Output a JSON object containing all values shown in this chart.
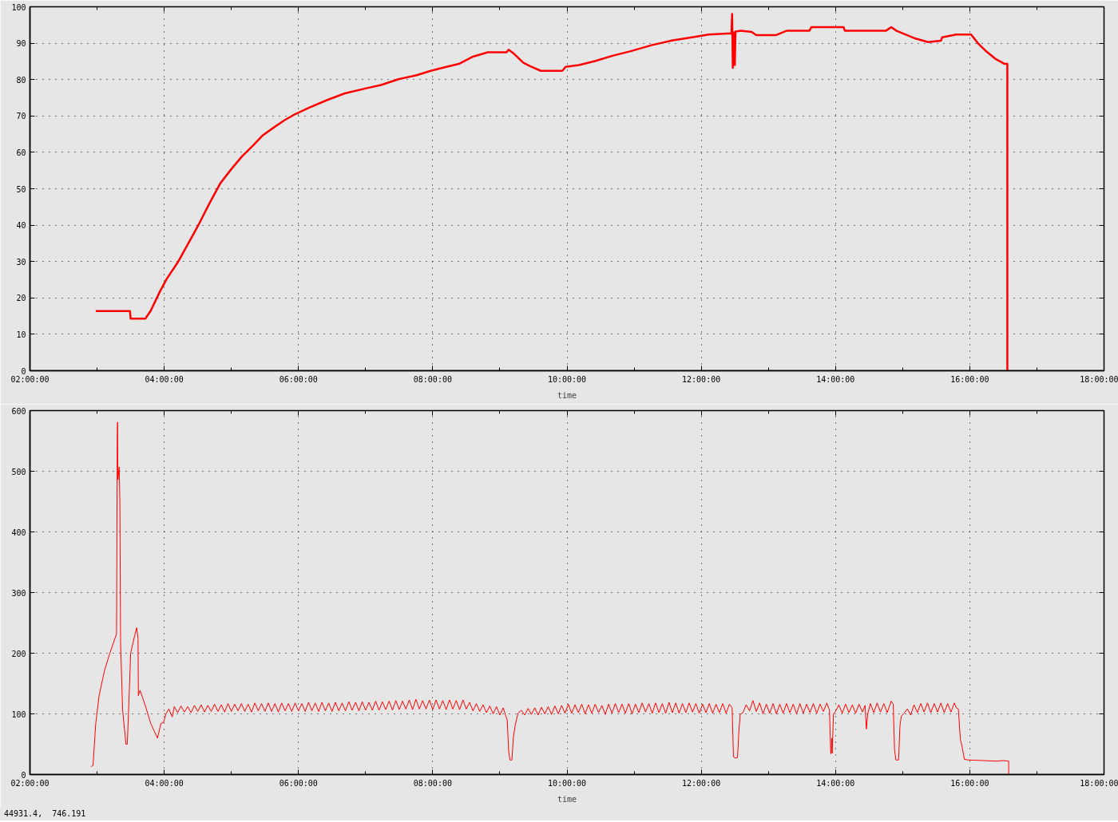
{
  "chart_data": [
    {
      "type": "line",
      "xlabel": "time",
      "xlim": [
        2,
        18
      ],
      "xticks": [
        {
          "value": 2,
          "label": "02:00:00"
        },
        {
          "value": 3,
          "label": null
        },
        {
          "value": 4,
          "label": "04:00:00"
        },
        {
          "value": 5,
          "label": null
        },
        {
          "value": 6,
          "label": "06:00:00"
        },
        {
          "value": 7,
          "label": null
        },
        {
          "value": 8,
          "label": "08:00:00"
        },
        {
          "value": 9,
          "label": null
        },
        {
          "value": 10,
          "label": "10:00:00"
        },
        {
          "value": 11,
          "label": null
        },
        {
          "value": 12,
          "label": "12:00:00"
        },
        {
          "value": 13,
          "label": null
        },
        {
          "value": 14,
          "label": "14:00:00"
        },
        {
          "value": 15,
          "label": null
        },
        {
          "value": 16,
          "label": "16:00:00"
        },
        {
          "value": 17,
          "label": null
        },
        {
          "value": 18,
          "label": "18:00:00"
        }
      ],
      "ylim": [
        0,
        100
      ],
      "yticks": [
        0,
        10,
        20,
        30,
        40,
        50,
        60,
        70,
        80,
        90,
        100
      ],
      "grid": true,
      "x": [
        2.98,
        3.49,
        3.5,
        3.72,
        3.8,
        3.94,
        4.04,
        4.2,
        4.36,
        4.52,
        4.68,
        4.84,
        5.0,
        5.16,
        5.32,
        5.47,
        5.63,
        5.79,
        5.95,
        6.16,
        6.43,
        6.69,
        7.01,
        7.23,
        7.49,
        7.76,
        7.97,
        8.18,
        8.39,
        8.6,
        8.82,
        9.1,
        9.13,
        9.21,
        9.35,
        9.45,
        9.61,
        9.93,
        9.98,
        10.18,
        10.42,
        10.69,
        10.95,
        11.27,
        11.58,
        11.9,
        12.11,
        12.45,
        12.46,
        12.47,
        12.48,
        12.5,
        12.51,
        12.59,
        12.75,
        12.82,
        13.11,
        13.27,
        13.61,
        13.64,
        14.12,
        14.14,
        14.75,
        14.83,
        14.91,
        15.04,
        15.17,
        15.38,
        15.57,
        15.59,
        15.8,
        16.02,
        16.12,
        16.23,
        16.39,
        16.52,
        16.56,
        16.56
      ],
      "series": [
        {
          "color": "#ff0000",
          "values": [
            16.4,
            16.4,
            14.3,
            14.3,
            16.5,
            21.9,
            25.3,
            29.7,
            35.0,
            40.4,
            46.2,
            51.6,
            55.4,
            58.9,
            61.8,
            64.7,
            66.8,
            68.8,
            70.5,
            72.3,
            74.4,
            76.2,
            77.6,
            78.5,
            80.1,
            81.2,
            82.4,
            83.4,
            84.3,
            86.3,
            87.5,
            87.5,
            88.2,
            87.1,
            84.6,
            83.7,
            82.4,
            82.4,
            83.5,
            84.0,
            85.1,
            86.6,
            87.8,
            89.5,
            90.8,
            91.7,
            92.4,
            92.7,
            98.0,
            83.2,
            93.0,
            84.0,
            93.2,
            93.4,
            93.1,
            92.2,
            92.2,
            93.4,
            93.4,
            94.4,
            94.4,
            93.4,
            93.4,
            94.4,
            93.4,
            92.4,
            91.4,
            90.3,
            90.7,
            91.6,
            92.4,
            92.4,
            90.0,
            88.0,
            85.6,
            84.3,
            84.3,
            0
          ]
        }
      ]
    },
    {
      "type": "line",
      "xlabel": "time",
      "xlim": [
        2,
        18
      ],
      "xticks": [
        {
          "value": 2,
          "label": "02:00:00"
        },
        {
          "value": 3,
          "label": null
        },
        {
          "value": 4,
          "label": "04:00:00"
        },
        {
          "value": 5,
          "label": null
        },
        {
          "value": 6,
          "label": "06:00:00"
        },
        {
          "value": 7,
          "label": null
        },
        {
          "value": 8,
          "label": "08:00:00"
        },
        {
          "value": 9,
          "label": null
        },
        {
          "value": 10,
          "label": "10:00:00"
        },
        {
          "value": 11,
          "label": null
        },
        {
          "value": 12,
          "label": "12:00:00"
        },
        {
          "value": 13,
          "label": null
        },
        {
          "value": 14,
          "label": "14:00:00"
        },
        {
          "value": 15,
          "label": null
        },
        {
          "value": 16,
          "label": "16:00:00"
        },
        {
          "value": 17,
          "label": null
        },
        {
          "value": 18,
          "label": "18:00:00"
        }
      ],
      "ylim": [
        0,
        600
      ],
      "yticks": [
        0,
        100,
        200,
        300,
        400,
        500,
        600
      ],
      "grid": true,
      "annotations": [
        "44931.4,  746.191"
      ],
      "x": [
        2.91,
        2.94,
        2.98,
        3.03,
        3.11,
        3.19,
        3.29,
        3.3,
        3.305,
        3.31,
        3.33,
        3.34,
        3.35,
        3.38,
        3.43,
        3.45,
        3.47,
        3.5,
        3.56,
        3.59,
        3.61,
        3.615,
        3.64,
        3.72,
        3.8,
        3.9,
        3.95,
        3.99,
        4.03,
        4.07,
        4.12,
        4.15,
        4.2,
        4.25,
        4.3,
        4.35,
        4.4,
        4.45,
        4.5,
        4.55,
        4.6,
        4.65,
        4.7,
        4.75,
        4.8,
        4.85,
        4.9,
        4.95,
        5.0,
        5.05,
        5.1,
        5.15,
        5.2,
        5.25,
        5.3,
        5.35,
        5.4,
        5.45,
        5.5,
        5.55,
        5.6,
        5.65,
        5.7,
        5.75,
        5.8,
        5.85,
        5.9,
        5.95,
        6.0,
        6.05,
        6.1,
        6.15,
        6.2,
        6.25,
        6.3,
        6.35,
        6.4,
        6.45,
        6.5,
        6.55,
        6.6,
        6.65,
        6.7,
        6.75,
        6.8,
        6.85,
        6.9,
        6.95,
        7.0,
        7.05,
        7.1,
        7.15,
        7.2,
        7.25,
        7.3,
        7.35,
        7.4,
        7.45,
        7.5,
        7.55,
        7.6,
        7.65,
        7.7,
        7.75,
        7.8,
        7.85,
        7.9,
        7.95,
        8.0,
        8.05,
        8.1,
        8.15,
        8.2,
        8.25,
        8.3,
        8.35,
        8.4,
        8.45,
        8.5,
        8.55,
        8.6,
        8.65,
        8.7,
        8.75,
        8.8,
        8.85,
        8.9,
        8.95,
        9.0,
        9.05,
        9.09,
        9.11,
        9.13,
        9.15,
        9.18,
        9.2,
        9.23,
        9.27,
        9.32,
        9.37,
        9.42,
        9.47,
        9.52,
        9.57,
        9.62,
        9.67,
        9.72,
        9.77,
        9.82,
        9.87,
        9.92,
        9.97,
        10.02,
        10.07,
        10.12,
        10.17,
        10.22,
        10.27,
        10.32,
        10.37,
        10.42,
        10.47,
        10.52,
        10.57,
        10.62,
        10.67,
        10.72,
        10.77,
        10.82,
        10.87,
        10.92,
        10.97,
        11.02,
        11.07,
        11.12,
        11.17,
        11.22,
        11.27,
        11.32,
        11.37,
        11.42,
        11.47,
        11.52,
        11.57,
        11.62,
        11.67,
        11.72,
        11.77,
        11.82,
        11.87,
        11.92,
        11.97,
        12.02,
        12.07,
        12.12,
        12.17,
        12.22,
        12.27,
        12.32,
        12.37,
        12.42,
        12.46,
        12.48,
        12.51,
        12.54,
        12.56,
        12.58,
        12.62,
        12.67,
        12.72,
        12.77,
        12.82,
        12.87,
        12.92,
        12.97,
        13.02,
        13.07,
        13.12,
        13.17,
        13.22,
        13.27,
        13.32,
        13.37,
        13.42,
        13.47,
        13.52,
        13.57,
        13.62,
        13.67,
        13.72,
        13.77,
        13.82,
        13.87,
        13.91,
        13.93,
        13.945,
        13.95,
        13.97,
        14.0,
        14.05,
        14.1,
        14.15,
        14.2,
        14.25,
        14.3,
        14.35,
        14.4,
        14.44,
        14.46,
        14.48,
        14.52,
        14.57,
        14.62,
        14.67,
        14.72,
        14.77,
        14.83,
        14.86,
        14.88,
        14.9,
        14.94,
        14.96,
        14.98,
        15.02,
        15.07,
        15.12,
        15.17,
        15.22,
        15.27,
        15.32,
        15.37,
        15.42,
        15.47,
        15.52,
        15.57,
        15.62,
        15.67,
        15.72,
        15.77,
        15.8,
        15.83,
        15.86,
        15.88,
        15.92,
        15.98,
        16.2,
        16.4,
        16.5,
        16.58,
        16.58
      ],
      "series": [
        {
          "color": "#ff0000",
          "values": [
            13,
            15,
            84,
            130,
            171,
            200,
            232,
            550,
            581,
            486,
            507,
            445,
            218,
            107,
            50,
            50,
            107,
            200,
            229,
            242,
            224,
            130,
            139,
            113,
            84,
            60,
            84,
            86,
            101,
            108,
            95,
            112,
            102,
            113,
            103,
            112,
            102,
            114,
            104,
            115,
            103,
            114,
            104,
            116,
            104,
            115,
            103,
            117,
            104,
            116,
            105,
            117,
            104,
            116,
            103,
            118,
            105,
            117,
            104,
            118,
            104,
            117,
            103,
            118,
            105,
            117,
            104,
            118,
            105,
            117,
            104,
            119,
            105,
            118,
            104,
            119,
            105,
            118,
            104,
            119,
            105,
            118,
            105,
            120,
            106,
            119,
            105,
            120,
            106,
            119,
            106,
            121,
            106,
            120,
            107,
            121,
            106,
            122,
            107,
            121,
            108,
            123,
            107,
            124,
            108,
            122,
            108,
            123,
            107,
            123,
            108,
            122,
            107,
            123,
            108,
            122,
            107,
            123,
            108,
            119,
            105,
            117,
            104,
            115,
            102,
            113,
            100,
            112,
            98,
            110,
            96,
            90,
            40,
            24,
            24,
            60,
            82,
            101,
            106,
            98,
            109,
            99,
            110,
            98,
            111,
            100,
            112,
            99,
            113,
            100,
            114,
            101,
            116,
            101,
            115,
            102,
            116,
            100,
            115,
            101,
            116,
            102,
            114,
            99,
            116,
            101,
            117,
            102,
            116,
            101,
            117,
            100,
            116,
            102,
            118,
            103,
            117,
            101,
            118,
            102,
            117,
            101,
            119,
            102,
            118,
            101,
            117,
            102,
            118,
            103,
            117,
            101,
            116,
            102,
            117,
            101,
            116,
            102,
            117,
            101,
            116,
            110,
            29,
            27,
            28,
            70,
            99,
            102,
            115,
            105,
            122,
            104,
            118,
            100,
            116,
            101,
            117,
            100,
            116,
            101,
            117,
            102,
            116,
            100,
            117,
            101,
            116,
            102,
            117,
            101,
            116,
            104,
            118,
            106,
            34,
            60,
            35,
            100,
            104,
            115,
            101,
            116,
            102,
            115,
            101,
            116,
            103,
            114,
            75,
            100,
            117,
            102,
            118,
            103,
            117,
            102,
            121,
            116,
            40,
            24,
            24,
            80,
            96,
            101,
            108,
            98,
            115,
            102,
            117,
            103,
            118,
            102,
            117,
            103,
            118,
            102,
            117,
            103,
            118,
            110,
            108,
            58,
            49,
            25,
            24,
            23,
            22,
            23,
            22,
            0
          ]
        }
      ]
    }
  ]
}
